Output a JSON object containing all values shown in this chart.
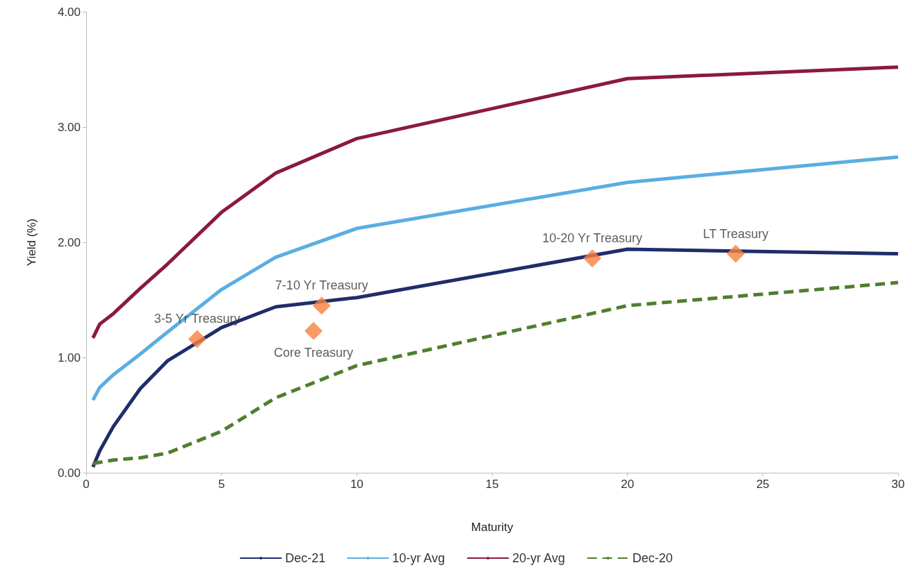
{
  "chart_data": {
    "type": "line",
    "xlabel": "Maturity",
    "ylabel": "Yield (%)",
    "x": [
      0.25,
      0.5,
      1,
      2,
      3,
      5,
      7,
      10,
      20,
      30
    ],
    "series": [
      {
        "name": "Dec-21",
        "color": "#1f2d6b",
        "values": [
          0.05,
          0.19,
          0.4,
          0.73,
          0.97,
          1.26,
          1.44,
          1.52,
          1.94,
          1.9
        ]
      },
      {
        "name": "10-yr Avg",
        "color": "#5aaee0",
        "values": [
          0.63,
          0.74,
          0.85,
          1.03,
          1.22,
          1.59,
          1.87,
          2.12,
          2.52,
          2.74
        ]
      },
      {
        "name": "20-yr Avg",
        "color": "#8b1a3c",
        "values": [
          1.17,
          1.29,
          1.38,
          1.6,
          1.81,
          2.26,
          2.6,
          2.9,
          3.42,
          3.52
        ]
      },
      {
        "name": "Dec-20",
        "color": "#4e7f2e",
        "line_style": "dashed",
        "values": [
          0.08,
          0.09,
          0.11,
          0.13,
          0.17,
          0.36,
          0.65,
          0.93,
          1.45,
          1.65
        ]
      },
      {
        "type": "scatter",
        "color": "#f7813e",
        "marker": "diamond",
        "x": [
          4.1,
          8.4,
          8.7,
          18.7,
          24
        ],
        "values": [
          1.16,
          1.23,
          1.45,
          1.86,
          1.9
        ]
      }
    ],
    "annotations": [
      {
        "text": "3-5 Yr Treasury",
        "x": 4.1,
        "y": 1.16
      },
      {
        "text": "Core Treasury",
        "x": 8.4,
        "y": 1.23
      },
      {
        "text": "7-10 Yr Treasury",
        "x": 8.7,
        "y": 1.45
      },
      {
        "text": "10-20 Yr Treasury",
        "x": 18.7,
        "y": 1.86
      },
      {
        "text": "LT Treasury",
        "x": 24,
        "y": 1.9
      }
    ],
    "xlim": [
      0,
      30
    ],
    "xticks": [
      0,
      5,
      10,
      15,
      20,
      25,
      30
    ],
    "ylim": [
      0,
      4
    ],
    "yticks": [
      {
        "value": 0,
        "label": "0.00"
      },
      {
        "value": 1,
        "label": "1.00"
      },
      {
        "value": 2,
        "label": "2.00"
      },
      {
        "value": 3,
        "label": "3.00"
      },
      {
        "value": 4,
        "label": "4.00"
      }
    ],
    "grid": false,
    "legend": "bottom",
    "marker": "none",
    "line_style": "solid"
  }
}
